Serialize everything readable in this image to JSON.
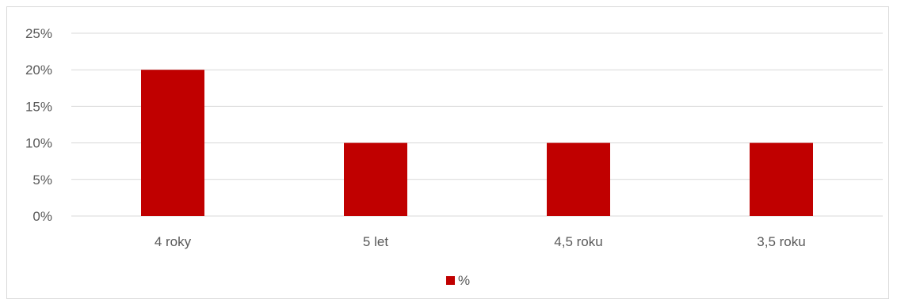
{
  "chart_data": {
    "type": "bar",
    "categories": [
      "4 roky",
      "5 let",
      "4,5 roku",
      "3,5 roku"
    ],
    "series": [
      {
        "name": "%",
        "values": [
          20,
          10,
          10,
          10
        ],
        "color": "#C00000"
      }
    ],
    "y_ticks": [
      "0%",
      "5%",
      "10%",
      "15%",
      "20%",
      "25%"
    ],
    "ylim": [
      0,
      25
    ],
    "grid": true,
    "legend_position": "bottom"
  }
}
